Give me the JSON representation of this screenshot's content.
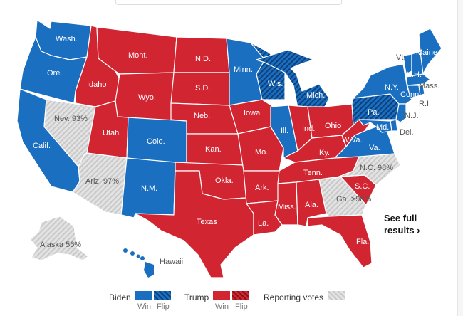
{
  "colors": {
    "biden": "#1a6fc1",
    "trump": "#d22532",
    "reporting": "#dddddd",
    "flip_hatch_biden": "#0d3f7a",
    "flip_hatch_trump": "#8a1017"
  },
  "states": {
    "wa": "Wash.",
    "or": "Ore.",
    "ca": "Calif.",
    "nv": "Nev. 93%",
    "id": "Idaho",
    "mt": "Mont.",
    "wy": "Wyo.",
    "ut": "Utah",
    "az": "Ariz. 97%",
    "co": "Colo.",
    "nm": "N.M.",
    "nd": "N.D.",
    "sd": "S.D.",
    "ne": "Neb.",
    "ks": "Kan.",
    "ok": "Okla.",
    "tx": "Texas",
    "mn": "Minn.",
    "ia": "Iowa",
    "mo": "Mo.",
    "ar": "Ark.",
    "la": "La.",
    "wi": "Wis.",
    "il": "Ill.",
    "mi": "Mich.",
    "in": "Ind.",
    "oh": "Ohio",
    "ky": "Ky.",
    "tn": "Tenn.",
    "ms": "Miss.",
    "al": "Ala.",
    "ga": "Ga. >98%",
    "fl": "Fla.",
    "sc": "S.C.",
    "nc": "N.C. 98%",
    "va": "Va.",
    "wv": "W.Va.",
    "pa": "Pa.",
    "ny": "N.Y.",
    "vt": "Vt.",
    "nh": "N.H.",
    "me": "Maine",
    "ma": "Mass.",
    "ct": "Conn.",
    "ri": "R.I.",
    "nj": "N.J.",
    "de": "Del.",
    "md": "Md.",
    "ak": "Alaska 56%",
    "hi": "Hawaii"
  },
  "see_full_results": "See full results ›",
  "legend": {
    "biden": "Biden",
    "trump": "Trump",
    "reporting": "Reporting votes",
    "win": "Win",
    "flip": "Flip"
  }
}
